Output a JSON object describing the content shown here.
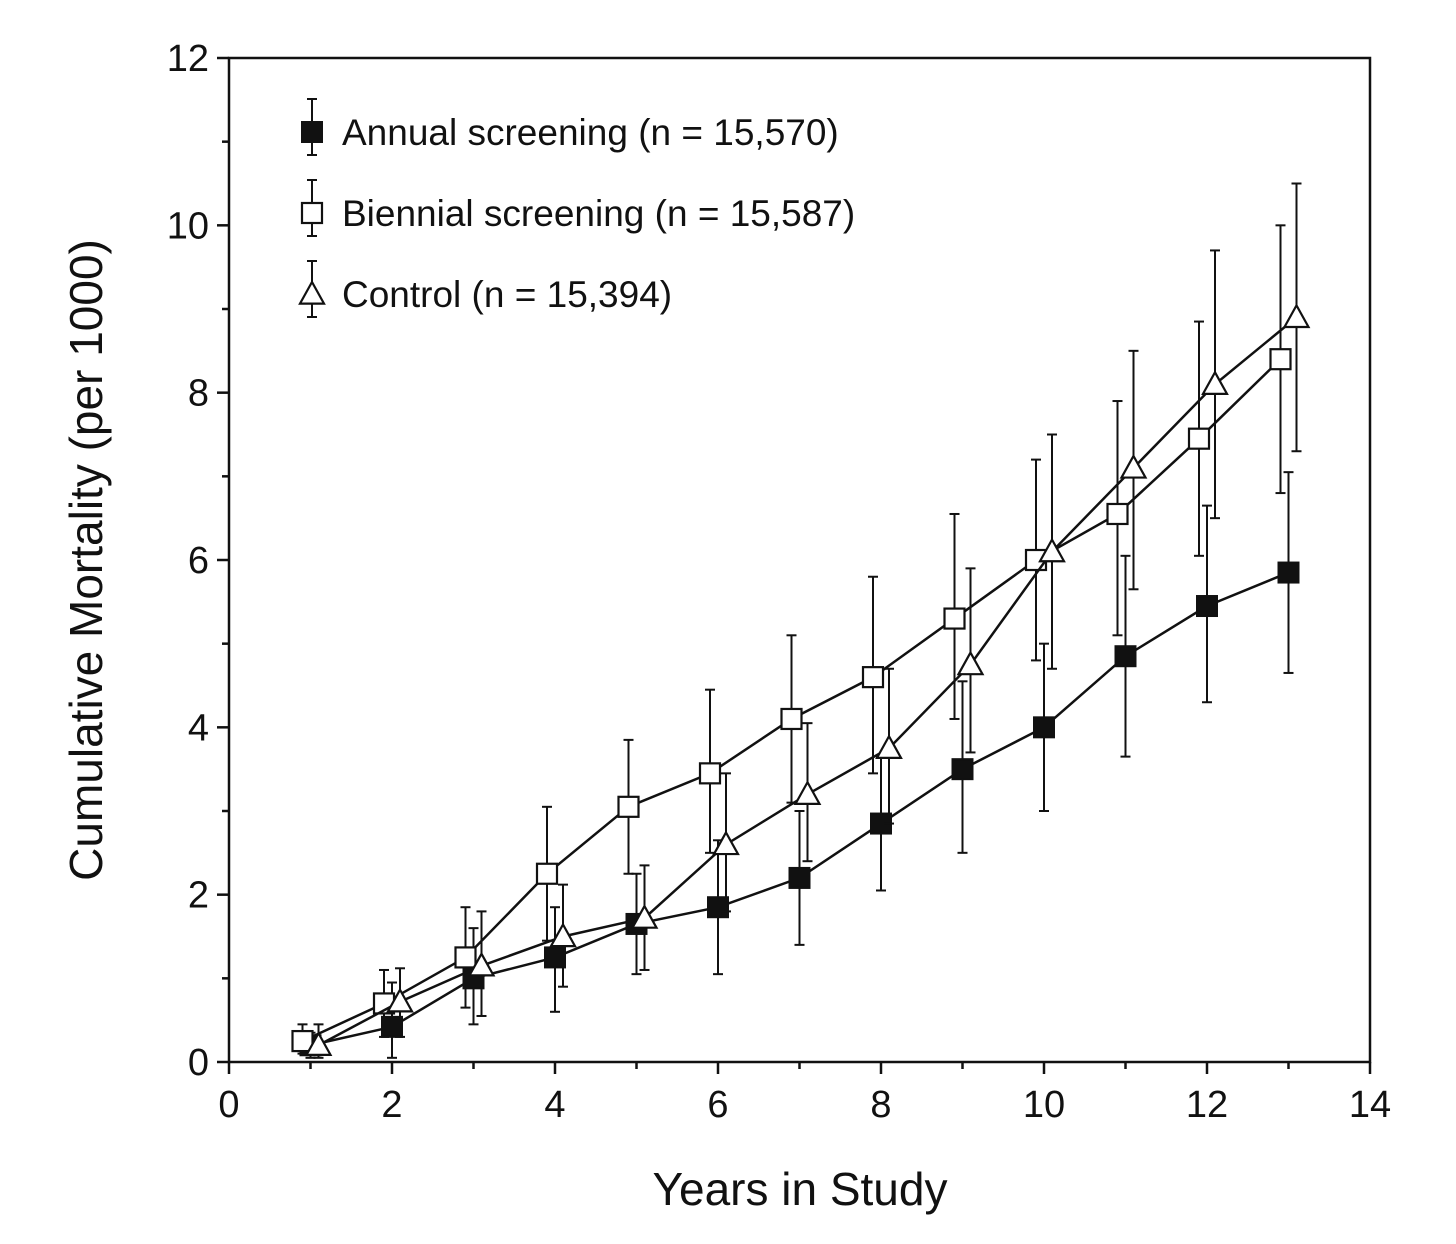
{
  "chart_data": {
    "type": "line",
    "xlabel": "Years in Study",
    "ylabel": "Cumulative Mortality (per 1000)",
    "xlim": [
      0,
      14
    ],
    "ylim": [
      0,
      12
    ],
    "xticks": [
      0,
      2,
      4,
      6,
      8,
      10,
      12,
      14
    ],
    "yticks": [
      0,
      2,
      4,
      6,
      8,
      10,
      12
    ],
    "grid": false,
    "legend_position": "top-left",
    "series": [
      {
        "name": "Annual screening (n = 15,570)",
        "marker": "filled-square",
        "x": [
          1,
          2,
          3,
          4,
          5,
          6,
          7,
          8,
          9,
          10,
          11,
          12,
          13
        ],
        "values": [
          0.2,
          0.42,
          1.0,
          1.25,
          1.65,
          1.85,
          2.2,
          2.85,
          3.5,
          4.0,
          4.85,
          5.45,
          5.85
        ],
        "err_low": [
          0.05,
          0.05,
          0.45,
          0.6,
          1.05,
          1.05,
          1.4,
          2.05,
          2.5,
          3.0,
          3.65,
          4.3,
          4.65
        ],
        "err_high": [
          0.35,
          0.95,
          1.6,
          1.85,
          2.25,
          2.65,
          3.0,
          3.65,
          4.55,
          5.0,
          6.05,
          6.65,
          7.05
        ]
      },
      {
        "name": "Biennial screening (n = 15,587)",
        "marker": "open-square",
        "x": [
          1,
          2,
          3,
          4,
          5,
          6,
          7,
          8,
          9,
          10,
          11,
          12,
          13
        ],
        "values": [
          0.25,
          0.7,
          1.25,
          2.25,
          3.05,
          3.45,
          4.1,
          4.6,
          5.3,
          6.0,
          6.55,
          7.45,
          8.4
        ],
        "err_low": [
          0.1,
          0.3,
          0.65,
          1.45,
          2.25,
          2.5,
          3.1,
          3.45,
          4.1,
          4.8,
          5.1,
          6.05,
          6.8
        ],
        "err_high": [
          0.45,
          1.1,
          1.85,
          3.05,
          3.85,
          4.45,
          5.1,
          5.8,
          6.55,
          7.2,
          7.9,
          8.85,
          10.0
        ]
      },
      {
        "name": "Control (n = 15,394)",
        "marker": "open-triangle",
        "x": [
          1,
          2,
          3,
          4,
          5,
          6,
          7,
          8,
          9,
          10,
          11,
          12,
          13
        ],
        "values": [
          0.2,
          0.72,
          1.15,
          1.5,
          1.72,
          2.6,
          3.2,
          3.75,
          4.75,
          6.1,
          7.1,
          8.1,
          8.9
        ],
        "err_low": [
          0.05,
          0.3,
          0.55,
          0.9,
          1.1,
          1.8,
          2.4,
          2.85,
          3.7,
          4.7,
          5.65,
          6.5,
          7.3
        ],
        "err_high": [
          0.45,
          1.12,
          1.8,
          2.12,
          2.35,
          3.45,
          4.05,
          4.7,
          5.9,
          7.5,
          8.5,
          9.7,
          10.5
        ]
      }
    ]
  }
}
